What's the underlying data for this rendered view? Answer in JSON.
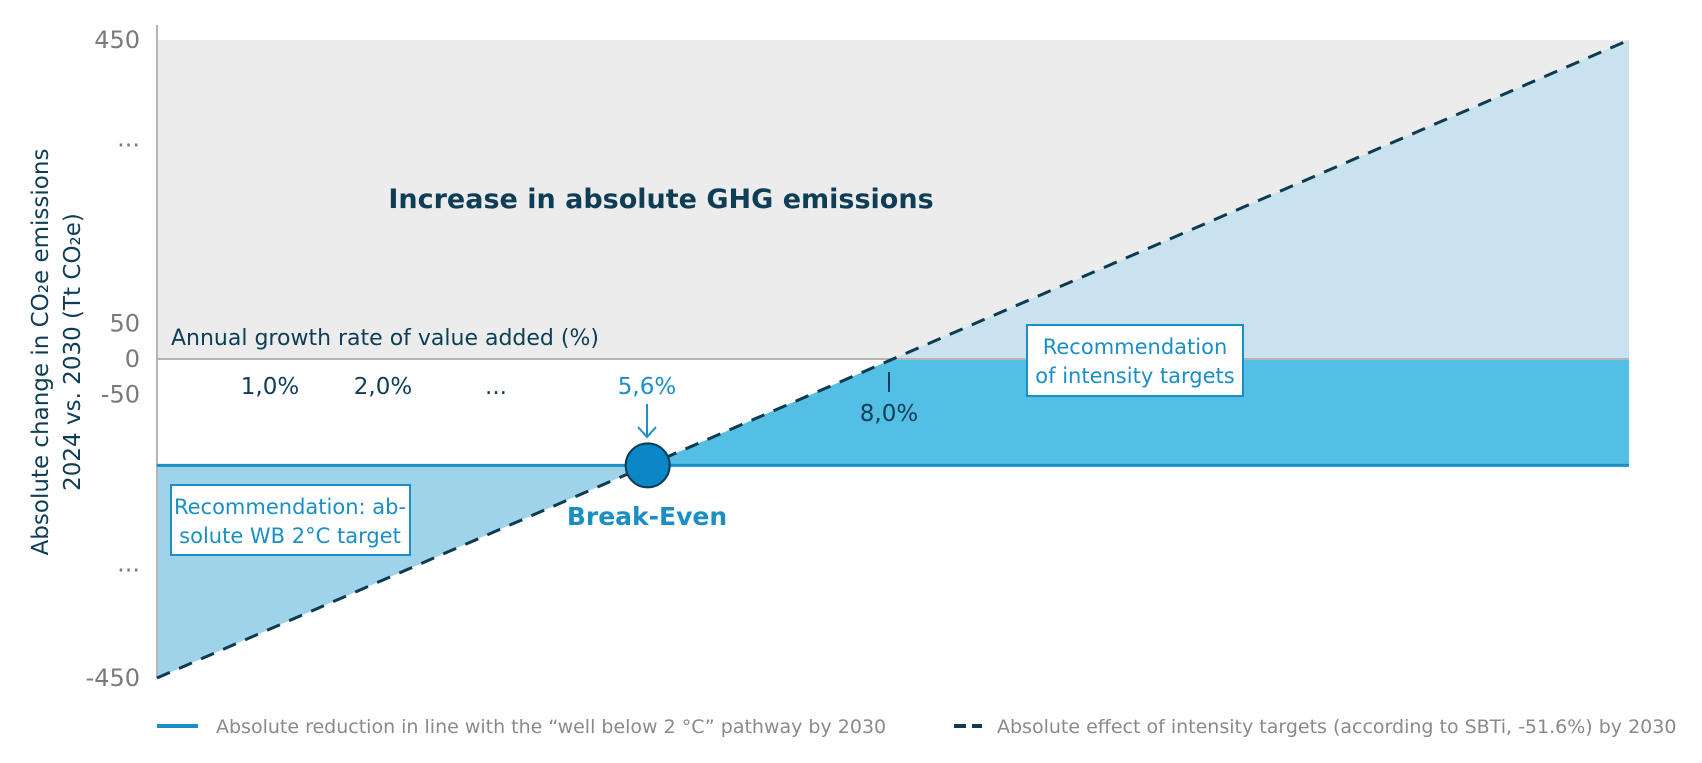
{
  "chart_data": {
    "type": "area",
    "ylabel_line1": "Absolute change in CO₂e emissions",
    "ylabel_line2": "2024 vs. 2030 (Tt CO₂e)",
    "xlabel": "Annual growth rate of value added (%)",
    "ylim": [
      -450,
      450
    ],
    "y_ticks": [
      {
        "value": 450,
        "label": "450"
      },
      {
        "value": 300,
        "label": "..."
      },
      {
        "value": 50,
        "label": "50"
      },
      {
        "value": 0,
        "label": "0"
      },
      {
        "value": -50,
        "label": "-50"
      },
      {
        "value": -300,
        "label": "..."
      },
      {
        "value": -450,
        "label": "-450"
      }
    ],
    "x_labels": [
      "1,0%",
      "2,0%",
      "..."
    ],
    "break_even": {
      "x_label": "5,6%",
      "y": -150,
      "label": "Break-Even"
    },
    "zero_crossing": {
      "x_label": "8,0%",
      "y": 0
    },
    "series": [
      {
        "name": "Absolute reduction in line with the “well below 2 °C” pathway by 2030",
        "style": "solid",
        "y_constant": -150,
        "color": "#1a8fc6"
      },
      {
        "name": "Absolute effect of intensity targets (according to SBTi, -51.6%) by 2030",
        "style": "dashed",
        "y_start": -450,
        "y_end": 450,
        "color": "#0d3b52"
      }
    ],
    "annotations": {
      "region_top": "Increase in absolute GHG emissions",
      "box_left_line1": "Recommendation: ab-",
      "box_left_line2": "solute WB 2°C target",
      "box_right_line1": "Recommendation",
      "box_right_line2": "of intensity targets"
    },
    "colors": {
      "increase_region": "#ececec",
      "upper_right_fill": "#c8e3ef",
      "intensity_fill": "#54bfe4",
      "absolute_fill": "#9ed3ea",
      "solid_line": "#1a8fc6",
      "dashed_line": "#0d3b52",
      "break_even_marker": "#0a87c6"
    },
    "legend_position": "bottom",
    "grid": false
  }
}
